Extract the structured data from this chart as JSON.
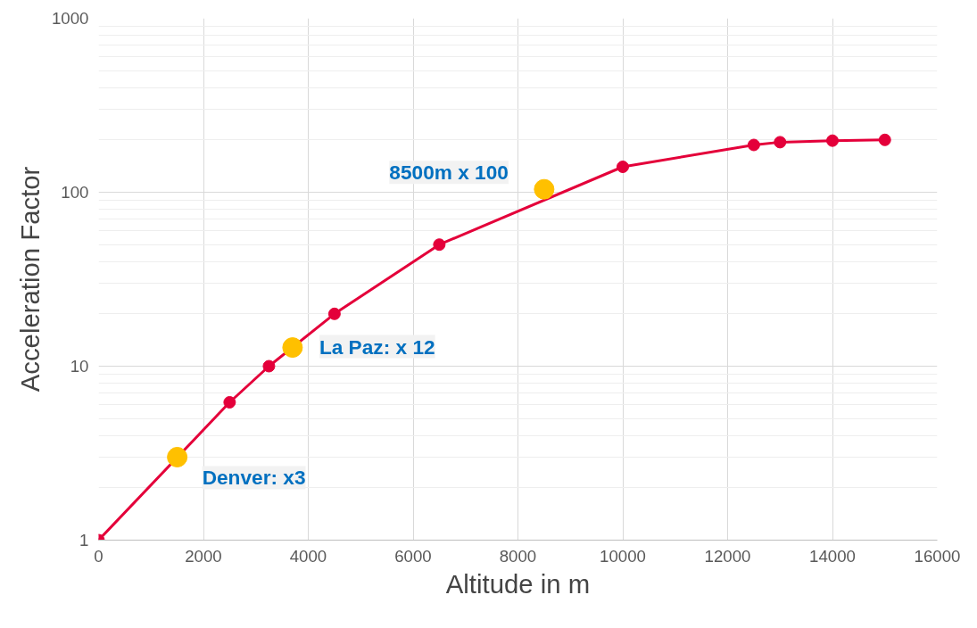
{
  "chart_data": {
    "type": "line",
    "xlabel": "Altitude in m",
    "ylabel": "Acceleration Factor",
    "log": "y",
    "grid": true,
    "marker": "circle",
    "line_style": "solid",
    "xlim": [
      0,
      16000
    ],
    "xticks": [
      0,
      2000,
      4000,
      6000,
      8000,
      10000,
      12000,
      14000,
      16000
    ],
    "ylim": [
      1,
      1000
    ],
    "yticks": [
      1,
      10,
      100,
      1000
    ],
    "series": [
      {
        "color": "#e4003a",
        "x": [
          0,
          2500,
          3250,
          4500,
          6500,
          10000,
          12500,
          13000,
          14000,
          15000
        ],
        "values": [
          1,
          6.2,
          10,
          20,
          50,
          140,
          187,
          194,
          198,
          200
        ]
      },
      {
        "type": "scatter",
        "color": "#ffc000",
        "x": [
          1500,
          3700,
          8500
        ],
        "values": [
          3,
          12.8,
          104
        ]
      }
    ],
    "annotations": [
      {
        "text": "Denver: x3",
        "x": 1500,
        "y": 3
      },
      {
        "text": "La Paz: x 12",
        "x": 3700,
        "y": 12.8
      },
      {
        "text": "8500m x 100",
        "x": 8500,
        "y": 104
      }
    ]
  }
}
